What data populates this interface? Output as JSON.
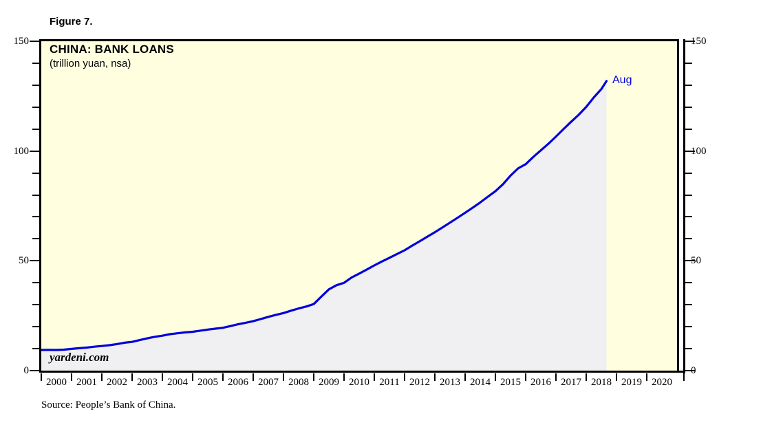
{
  "figure_label": "Figure 7.",
  "chart": {
    "title": "CHINA: BANK LOANS",
    "subtitle": "(trillion yuan, nsa)",
    "watermark": "yardeni.com",
    "end_label": "Aug"
  },
  "source": "Source: People’s Bank of China.",
  "colors": {
    "line": "#0000dd",
    "end_label": "#0000dd",
    "area_fill": "#f0f0f2",
    "plot_bg": "#ffffe0",
    "axis": "#000000",
    "page_bg": "#ffffff"
  },
  "chart_data": {
    "type": "area",
    "title": "CHINA: BANK LOANS",
    "subtitle": "(trillion yuan, nsa)",
    "ylabel": "trillion yuan",
    "xlabel": "",
    "ylim": [
      0,
      150
    ],
    "xlim": [
      2000,
      2021
    ],
    "grid": false,
    "legend_position": "none",
    "y_major_ticks": [
      0,
      50,
      100,
      150
    ],
    "y_minor_step": 10,
    "x_year_labels": [
      "2000",
      "2001",
      "2002",
      "2003",
      "2004",
      "2005",
      "2006",
      "2007",
      "2008",
      "2009",
      "2010",
      "2011",
      "2012",
      "2013",
      "2014",
      "2015",
      "2016",
      "2017",
      "2018",
      "2019",
      "2020"
    ],
    "last_point_label": "Aug",
    "last_point": {
      "x": 2018.67,
      "value": 131.9
    },
    "series": [
      {
        "name": "China bank loans (trillion yuan, nsa)",
        "x": [
          2000.0,
          2000.25,
          2000.5,
          2000.75,
          2001.0,
          2001.25,
          2001.5,
          2001.75,
          2002.0,
          2002.25,
          2002.5,
          2002.75,
          2003.0,
          2003.25,
          2003.5,
          2003.75,
          2004.0,
          2004.25,
          2004.5,
          2004.75,
          2005.0,
          2005.25,
          2005.5,
          2005.75,
          2006.0,
          2006.25,
          2006.5,
          2006.75,
          2007.0,
          2007.25,
          2007.5,
          2007.75,
          2008.0,
          2008.25,
          2008.5,
          2008.75,
          2009.0,
          2009.25,
          2009.5,
          2009.75,
          2010.0,
          2010.25,
          2010.5,
          2010.75,
          2011.0,
          2011.25,
          2011.5,
          2011.75,
          2012.0,
          2012.25,
          2012.5,
          2012.75,
          2013.0,
          2013.25,
          2013.5,
          2013.75,
          2014.0,
          2014.25,
          2014.5,
          2014.75,
          2015.0,
          2015.25,
          2015.5,
          2015.75,
          2016.0,
          2016.25,
          2016.5,
          2016.75,
          2017.0,
          2017.25,
          2017.5,
          2017.75,
          2018.0,
          2018.25,
          2018.5,
          2018.67
        ],
        "values": [
          9.4,
          9.45,
          9.4,
          9.55,
          9.9,
          10.2,
          10.5,
          10.9,
          11.2,
          11.6,
          12.1,
          12.7,
          13.1,
          13.9,
          14.7,
          15.4,
          15.9,
          16.6,
          17.0,
          17.4,
          17.7,
          18.2,
          18.7,
          19.1,
          19.5,
          20.3,
          21.1,
          21.8,
          22.5,
          23.5,
          24.5,
          25.4,
          26.2,
          27.3,
          28.3,
          29.2,
          30.3,
          33.7,
          37.0,
          38.9,
          40.0,
          42.4,
          44.2,
          46.0,
          47.9,
          49.7,
          51.4,
          53.1,
          54.8,
          56.9,
          58.9,
          61.0,
          63.0,
          65.2,
          67.4,
          69.6,
          71.9,
          74.2,
          76.6,
          79.2,
          81.7,
          84.9,
          88.8,
          92.1,
          94.0,
          97.3,
          100.3,
          103.3,
          106.6,
          110.0,
          113.3,
          116.5,
          120.1,
          124.4,
          128.2,
          131.9
        ]
      }
    ]
  }
}
